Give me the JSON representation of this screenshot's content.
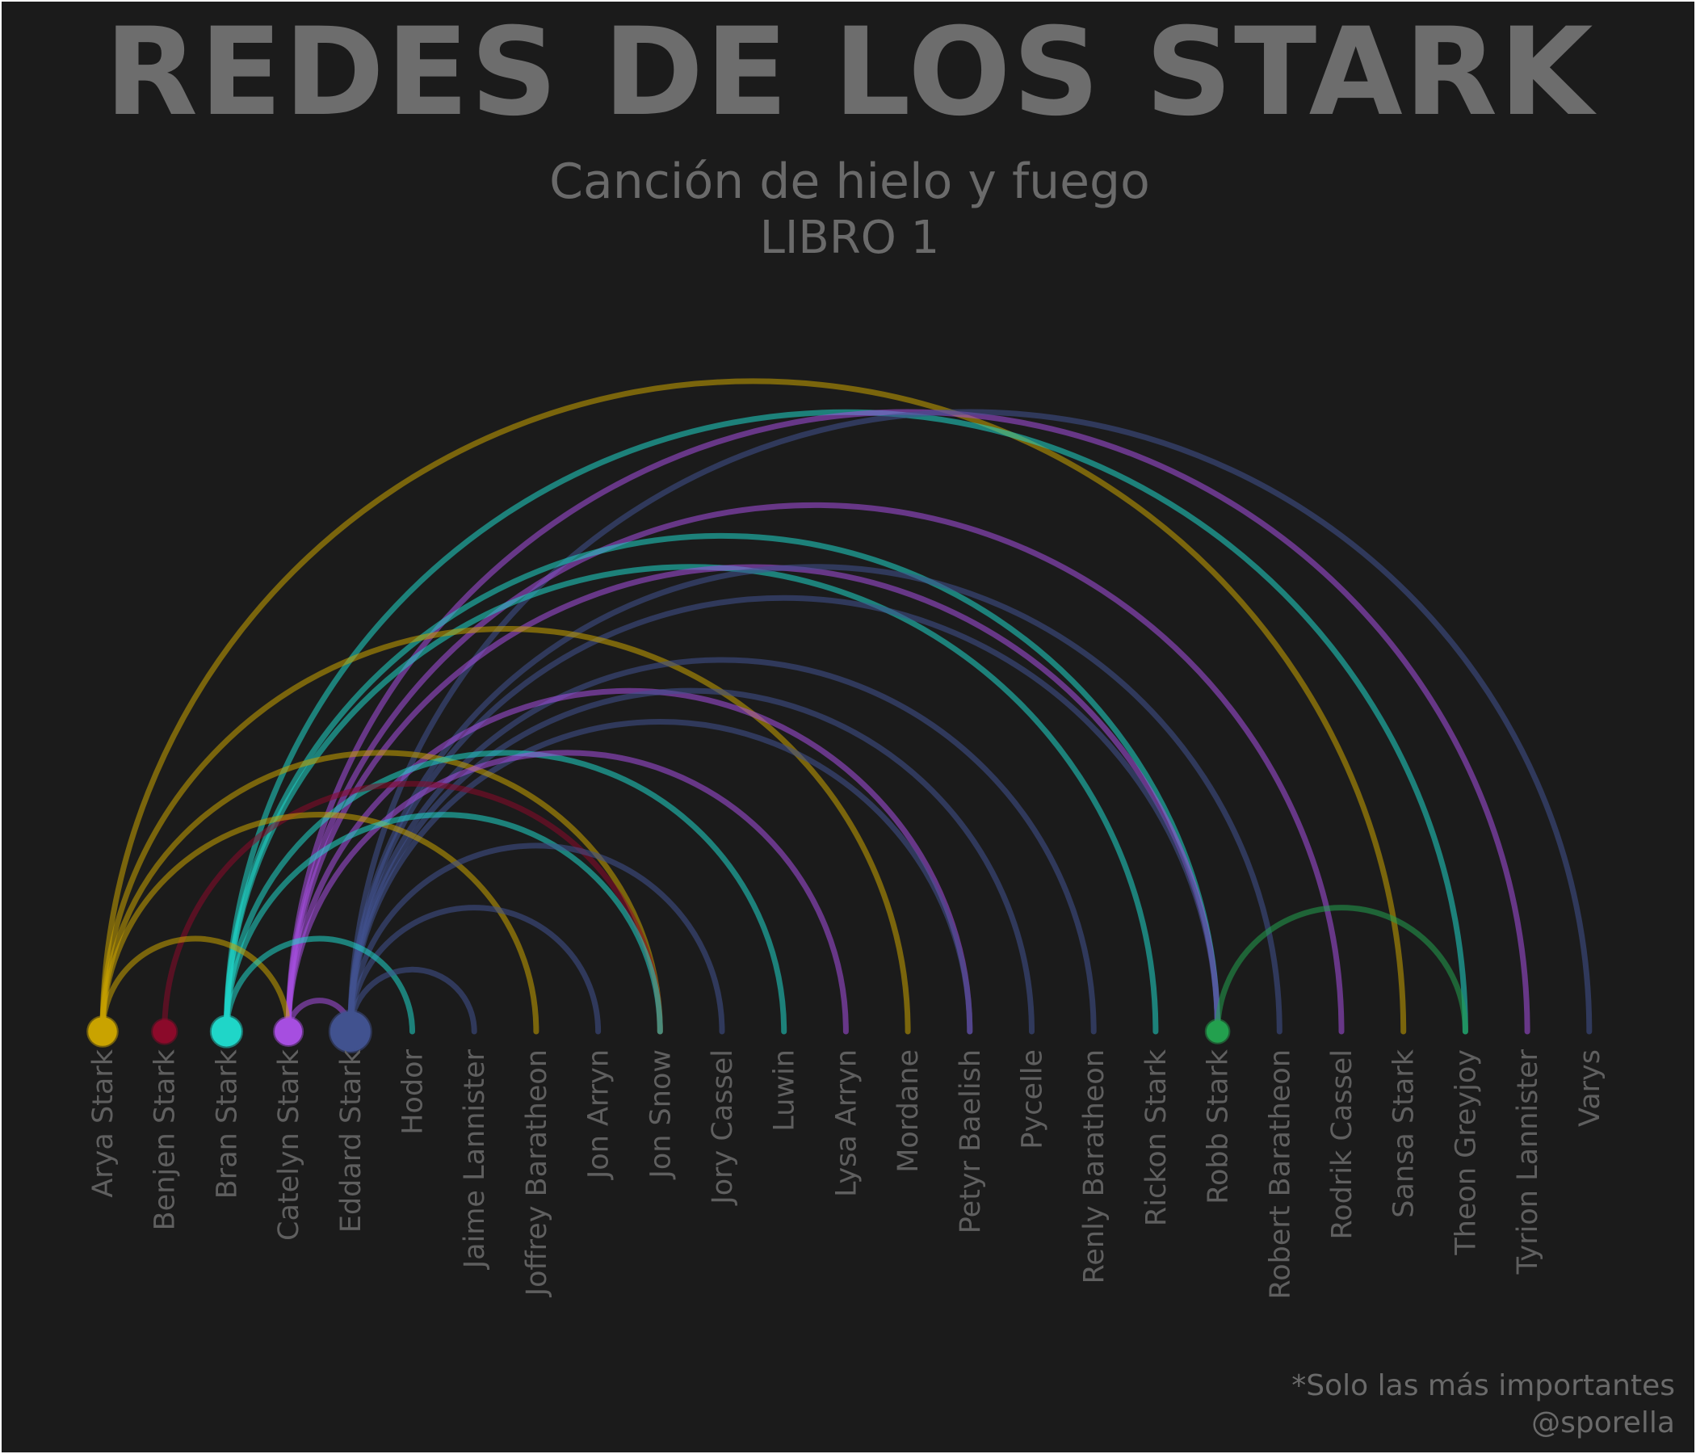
{
  "title": "REDES DE LOS STARK",
  "subtitle": "Canción de hielo y fuego",
  "subtitle2": "LIBRO 1",
  "footnote": "*Solo las más importantes",
  "credit": "@sporella",
  "chart_data": {
    "type": "arc-diagram",
    "nodes": [
      {
        "name": "Arya Stark",
        "color": "#c9a300",
        "weight": 1.1
      },
      {
        "name": "Benjen Stark",
        "color": "#8b0a2a",
        "weight": 0.7
      },
      {
        "name": "Bran Stark",
        "color": "#1fd6c8",
        "weight": 1.2
      },
      {
        "name": "Catelyn Stark",
        "color": "#a64ee0",
        "weight": 1.0
      },
      {
        "name": "Eddard Stark",
        "color": "#41528f",
        "weight": 2.0
      },
      {
        "name": "Hodor"
      },
      {
        "name": "Jaime Lannister"
      },
      {
        "name": "Joffrey Baratheon"
      },
      {
        "name": "Jon Arryn"
      },
      {
        "name": "Jon Snow"
      },
      {
        "name": "Jory Cassel"
      },
      {
        "name": "Luwin"
      },
      {
        "name": "Lysa Arryn"
      },
      {
        "name": "Mordane"
      },
      {
        "name": "Petyr Baelish"
      },
      {
        "name": "Pycelle"
      },
      {
        "name": "Renly Baratheon"
      },
      {
        "name": "Rickon Stark"
      },
      {
        "name": "Robb Stark",
        "color": "#23a04e",
        "weight": 0.6
      },
      {
        "name": "Robert Baratheon"
      },
      {
        "name": "Rodrik Cassel"
      },
      {
        "name": "Sansa Stark"
      },
      {
        "name": "Theon Greyjoy"
      },
      {
        "name": "Tyrion Lannister"
      },
      {
        "name": "Varys"
      }
    ],
    "edges": [
      {
        "source": "Arya Stark",
        "target": "Catelyn Stark"
      },
      {
        "source": "Arya Stark",
        "target": "Joffrey Baratheon"
      },
      {
        "source": "Arya Stark",
        "target": "Jon Snow"
      },
      {
        "source": "Arya Stark",
        "target": "Mordane"
      },
      {
        "source": "Arya Stark",
        "target": "Sansa Stark"
      },
      {
        "source": "Benjen Stark",
        "target": "Jon Snow"
      },
      {
        "source": "Bran Stark",
        "target": "Hodor"
      },
      {
        "source": "Bran Stark",
        "target": "Jon Snow"
      },
      {
        "source": "Bran Stark",
        "target": "Luwin"
      },
      {
        "source": "Bran Stark",
        "target": "Rickon Stark"
      },
      {
        "source": "Bran Stark",
        "target": "Robb Stark"
      },
      {
        "source": "Bran Stark",
        "target": "Theon Greyjoy"
      },
      {
        "source": "Catelyn Stark",
        "target": "Eddard Stark"
      },
      {
        "source": "Catelyn Stark",
        "target": "Lysa Arryn"
      },
      {
        "source": "Catelyn Stark",
        "target": "Petyr Baelish"
      },
      {
        "source": "Catelyn Stark",
        "target": "Robb Stark"
      },
      {
        "source": "Catelyn Stark",
        "target": "Rodrik Cassel"
      },
      {
        "source": "Catelyn Stark",
        "target": "Tyrion Lannister"
      },
      {
        "source": "Eddard Stark",
        "target": "Jaime Lannister"
      },
      {
        "source": "Eddard Stark",
        "target": "Jon Arryn"
      },
      {
        "source": "Eddard Stark",
        "target": "Jory Cassel"
      },
      {
        "source": "Eddard Stark",
        "target": "Petyr Baelish"
      },
      {
        "source": "Eddard Stark",
        "target": "Pycelle"
      },
      {
        "source": "Eddard Stark",
        "target": "Renly Baratheon"
      },
      {
        "source": "Eddard Stark",
        "target": "Robb Stark"
      },
      {
        "source": "Eddard Stark",
        "target": "Robert Baratheon"
      },
      {
        "source": "Eddard Stark",
        "target": "Varys"
      },
      {
        "source": "Robb Stark",
        "target": "Theon Greyjoy"
      }
    ]
  }
}
